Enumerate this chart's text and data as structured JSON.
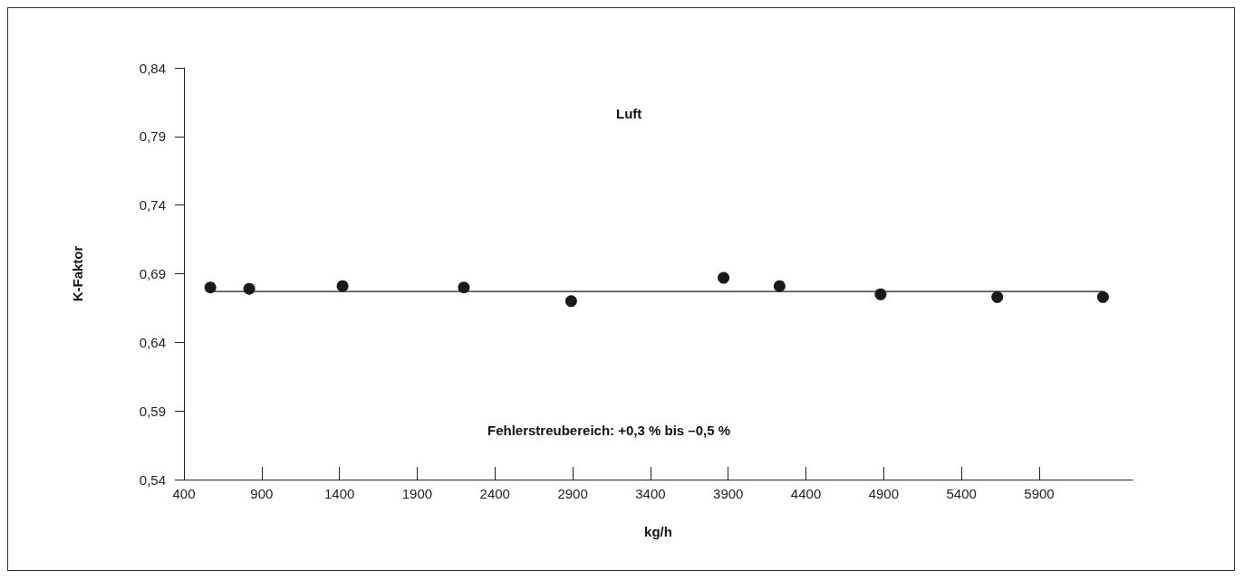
{
  "chart_data": {
    "type": "scatter",
    "xlabel": "kg/h",
    "ylabel": "K-Faktor",
    "annotations": [
      "Luft",
      "Fehlerstreubereich: +0,3 % bis –0,5 %"
    ],
    "x": [
      570,
      820,
      1420,
      2200,
      2890,
      3870,
      4230,
      4880,
      5630,
      6310
    ],
    "series": [
      {
        "color": "#1a1a1a",
        "marker": "circle",
        "values": [
          0.68,
          0.679,
          0.681,
          0.68,
          0.67,
          0.687,
          0.681,
          0.675,
          0.673,
          0.673
        ]
      },
      {
        "type": "line",
        "color": "#1a1a1a",
        "x": [
          570,
          6310
        ],
        "values": [
          0.677,
          0.677
        ]
      }
    ],
    "xlim": [
      400,
      6500
    ],
    "xticks": [
      400,
      900,
      1400,
      1900,
      2400,
      2900,
      3400,
      3900,
      4400,
      4900,
      5400,
      5900
    ],
    "ylim": [
      0.54,
      0.84
    ],
    "yticks": [
      {
        "value": 0.54,
        "label": "0,54"
      },
      {
        "value": 0.59,
        "label": "0,59"
      },
      {
        "value": 0.64,
        "label": "0,64"
      },
      {
        "value": 0.69,
        "label": "0,69"
      },
      {
        "value": 0.74,
        "label": "0,74"
      },
      {
        "value": 0.79,
        "label": "0,79"
      },
      {
        "value": 0.84,
        "label": "0,84"
      }
    ],
    "grid": false
  }
}
